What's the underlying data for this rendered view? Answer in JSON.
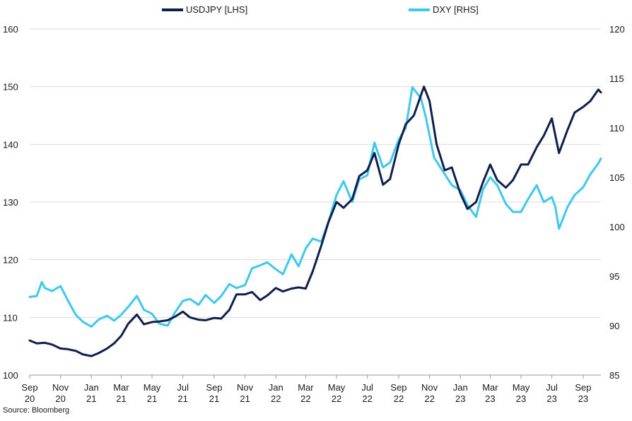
{
  "chart_data": {
    "type": "line",
    "source": "Source: Bloomberg",
    "x_tick_labels": [
      [
        "Sep",
        "20"
      ],
      [
        "Nov",
        "20"
      ],
      [
        "Jan",
        "21"
      ],
      [
        "Mar",
        "21"
      ],
      [
        "May",
        "21"
      ],
      [
        "Jul",
        "21"
      ],
      [
        "Sep",
        "21"
      ],
      [
        "Nov",
        "21"
      ],
      [
        "Jan",
        "22"
      ],
      [
        "Mar",
        "22"
      ],
      [
        "May",
        "22"
      ],
      [
        "Jul",
        "22"
      ],
      [
        "Sep",
        "22"
      ],
      [
        "Nov",
        "22"
      ],
      [
        "Jan",
        "23"
      ],
      [
        "Mar",
        "23"
      ],
      [
        "May",
        "23"
      ],
      [
        "Jul",
        "23"
      ],
      [
        "Sep",
        "23"
      ]
    ],
    "x_range": [
      "2020-09-01",
      "2023-10-06"
    ],
    "y_left": {
      "range": [
        100,
        160
      ],
      "ticks": [
        100,
        110,
        120,
        130,
        140,
        150,
        160
      ]
    },
    "y_right": {
      "range": [
        85,
        120
      ],
      "ticks": [
        85,
        90,
        95,
        100,
        105,
        110,
        115,
        120
      ]
    },
    "grid": "horizontal",
    "legend_position": "top",
    "series": [
      {
        "name": "USDJPY [LHS]",
        "axis": "left",
        "color": "#0f1f4b",
        "points": [
          [
            "2020-09-01",
            106.0
          ],
          [
            "2020-09-15",
            105.5
          ],
          [
            "2020-10-01",
            105.6
          ],
          [
            "2020-10-15",
            105.3
          ],
          [
            "2020-11-01",
            104.6
          ],
          [
            "2020-11-15",
            104.5
          ],
          [
            "2020-12-01",
            104.2
          ],
          [
            "2020-12-15",
            103.6
          ],
          [
            "2021-01-01",
            103.3
          ],
          [
            "2021-01-15",
            103.8
          ],
          [
            "2021-02-01",
            104.6
          ],
          [
            "2021-02-15",
            105.5
          ],
          [
            "2021-03-01",
            106.8
          ],
          [
            "2021-03-15",
            108.9
          ],
          [
            "2021-04-01",
            110.5
          ],
          [
            "2021-04-15",
            108.8
          ],
          [
            "2021-05-01",
            109.2
          ],
          [
            "2021-05-15",
            109.3
          ],
          [
            "2021-06-01",
            109.5
          ],
          [
            "2021-06-15",
            110.1
          ],
          [
            "2021-07-01",
            111.0
          ],
          [
            "2021-07-15",
            110.0
          ],
          [
            "2021-08-01",
            109.6
          ],
          [
            "2021-08-15",
            109.5
          ],
          [
            "2021-09-01",
            109.9
          ],
          [
            "2021-09-15",
            109.8
          ],
          [
            "2021-10-01",
            111.3
          ],
          [
            "2021-10-15",
            114.0
          ],
          [
            "2021-11-01",
            114.0
          ],
          [
            "2021-11-15",
            114.4
          ],
          [
            "2021-12-01",
            113.0
          ],
          [
            "2021-12-15",
            113.8
          ],
          [
            "2022-01-01",
            115.1
          ],
          [
            "2022-01-15",
            114.5
          ],
          [
            "2022-02-01",
            115.0
          ],
          [
            "2022-02-15",
            115.2
          ],
          [
            "2022-03-01",
            115.0
          ],
          [
            "2022-03-15",
            118.0
          ],
          [
            "2022-04-01",
            122.5
          ],
          [
            "2022-04-15",
            126.5
          ],
          [
            "2022-05-01",
            130.0
          ],
          [
            "2022-05-15",
            129.0
          ],
          [
            "2022-06-01",
            130.5
          ],
          [
            "2022-06-15",
            134.5
          ],
          [
            "2022-07-01",
            135.5
          ],
          [
            "2022-07-15",
            138.5
          ],
          [
            "2022-08-01",
            133.0
          ],
          [
            "2022-08-15",
            134.0
          ],
          [
            "2022-09-01",
            140.0
          ],
          [
            "2022-09-15",
            143.5
          ],
          [
            "2022-10-01",
            145.0
          ],
          [
            "2022-10-15",
            148.5
          ],
          [
            "2022-10-21",
            150.0
          ],
          [
            "2022-11-01",
            147.5
          ],
          [
            "2022-11-15",
            140.0
          ],
          [
            "2022-12-01",
            135.5
          ],
          [
            "2022-12-15",
            136.0
          ],
          [
            "2023-01-01",
            131.5
          ],
          [
            "2023-01-15",
            128.8
          ],
          [
            "2023-02-01",
            130.0
          ],
          [
            "2023-02-15",
            133.5
          ],
          [
            "2023-03-01",
            136.5
          ],
          [
            "2023-03-15",
            133.8
          ],
          [
            "2023-04-01",
            132.5
          ],
          [
            "2023-04-15",
            133.8
          ],
          [
            "2023-05-01",
            136.5
          ],
          [
            "2023-05-15",
            136.5
          ],
          [
            "2023-06-01",
            139.5
          ],
          [
            "2023-06-15",
            141.5
          ],
          [
            "2023-07-01",
            144.5
          ],
          [
            "2023-07-15",
            138.5
          ],
          [
            "2023-08-01",
            142.5
          ],
          [
            "2023-08-15",
            145.5
          ],
          [
            "2023-09-01",
            146.5
          ],
          [
            "2023-09-15",
            147.5
          ],
          [
            "2023-10-01",
            149.5
          ],
          [
            "2023-10-06",
            149.0
          ]
        ]
      },
      {
        "name": "DXY [RHS]",
        "axis": "right",
        "color": "#3ec8ef",
        "points": [
          [
            "2020-09-01",
            92.9
          ],
          [
            "2020-09-15",
            93.0
          ],
          [
            "2020-09-25",
            94.4
          ],
          [
            "2020-10-01",
            93.8
          ],
          [
            "2020-10-15",
            93.5
          ],
          [
            "2020-11-01",
            94.0
          ],
          [
            "2020-11-15",
            92.6
          ],
          [
            "2020-12-01",
            91.1
          ],
          [
            "2020-12-15",
            90.4
          ],
          [
            "2021-01-01",
            89.9
          ],
          [
            "2021-01-15",
            90.6
          ],
          [
            "2021-02-01",
            91.0
          ],
          [
            "2021-02-15",
            90.5
          ],
          [
            "2021-03-01",
            91.1
          ],
          [
            "2021-03-15",
            91.9
          ],
          [
            "2021-04-01",
            93.0
          ],
          [
            "2021-04-15",
            91.6
          ],
          [
            "2021-05-01",
            91.2
          ],
          [
            "2021-05-15",
            90.2
          ],
          [
            "2021-06-01",
            90.0
          ],
          [
            "2021-06-15",
            91.3
          ],
          [
            "2021-07-01",
            92.5
          ],
          [
            "2021-07-15",
            92.7
          ],
          [
            "2021-08-01",
            92.1
          ],
          [
            "2021-08-15",
            93.1
          ],
          [
            "2021-09-01",
            92.3
          ],
          [
            "2021-09-15",
            93.0
          ],
          [
            "2021-10-01",
            94.2
          ],
          [
            "2021-10-15",
            93.8
          ],
          [
            "2021-11-01",
            94.1
          ],
          [
            "2021-11-15",
            95.8
          ],
          [
            "2021-12-01",
            96.1
          ],
          [
            "2021-12-15",
            96.4
          ],
          [
            "2022-01-01",
            95.7
          ],
          [
            "2022-01-15",
            95.2
          ],
          [
            "2022-02-01",
            97.2
          ],
          [
            "2022-02-15",
            96.0
          ],
          [
            "2022-03-01",
            97.8
          ],
          [
            "2022-03-15",
            98.8
          ],
          [
            "2022-04-01",
            98.5
          ],
          [
            "2022-04-15",
            100.5
          ],
          [
            "2022-05-01",
            103.2
          ],
          [
            "2022-05-15",
            104.6
          ],
          [
            "2022-06-01",
            102.5
          ],
          [
            "2022-06-15",
            104.8
          ],
          [
            "2022-07-01",
            105.2
          ],
          [
            "2022-07-15",
            108.5
          ],
          [
            "2022-08-01",
            106.0
          ],
          [
            "2022-08-15",
            106.5
          ],
          [
            "2022-09-01",
            108.8
          ],
          [
            "2022-09-15",
            110.0
          ],
          [
            "2022-09-28",
            114.1
          ],
          [
            "2022-10-15",
            113.0
          ],
          [
            "2022-10-25",
            111.0
          ],
          [
            "2022-11-10",
            107.0
          ],
          [
            "2022-11-25",
            105.8
          ],
          [
            "2022-12-15",
            104.2
          ],
          [
            "2023-01-01",
            103.7
          ],
          [
            "2023-01-15",
            102.2
          ],
          [
            "2023-02-01",
            101.0
          ],
          [
            "2023-02-15",
            103.8
          ],
          [
            "2023-03-01",
            105.0
          ],
          [
            "2023-03-15",
            104.2
          ],
          [
            "2023-04-01",
            102.3
          ],
          [
            "2023-04-15",
            101.5
          ],
          [
            "2023-05-01",
            101.5
          ],
          [
            "2023-05-15",
            102.8
          ],
          [
            "2023-06-01",
            104.2
          ],
          [
            "2023-06-15",
            102.5
          ],
          [
            "2023-07-01",
            103.0
          ],
          [
            "2023-07-08",
            102.0
          ],
          [
            "2023-07-15",
            99.8
          ],
          [
            "2023-08-01",
            102.0
          ],
          [
            "2023-08-15",
            103.2
          ],
          [
            "2023-09-01",
            104.0
          ],
          [
            "2023-09-15",
            105.3
          ],
          [
            "2023-10-01",
            106.4
          ],
          [
            "2023-10-06",
            106.9
          ]
        ]
      }
    ]
  }
}
